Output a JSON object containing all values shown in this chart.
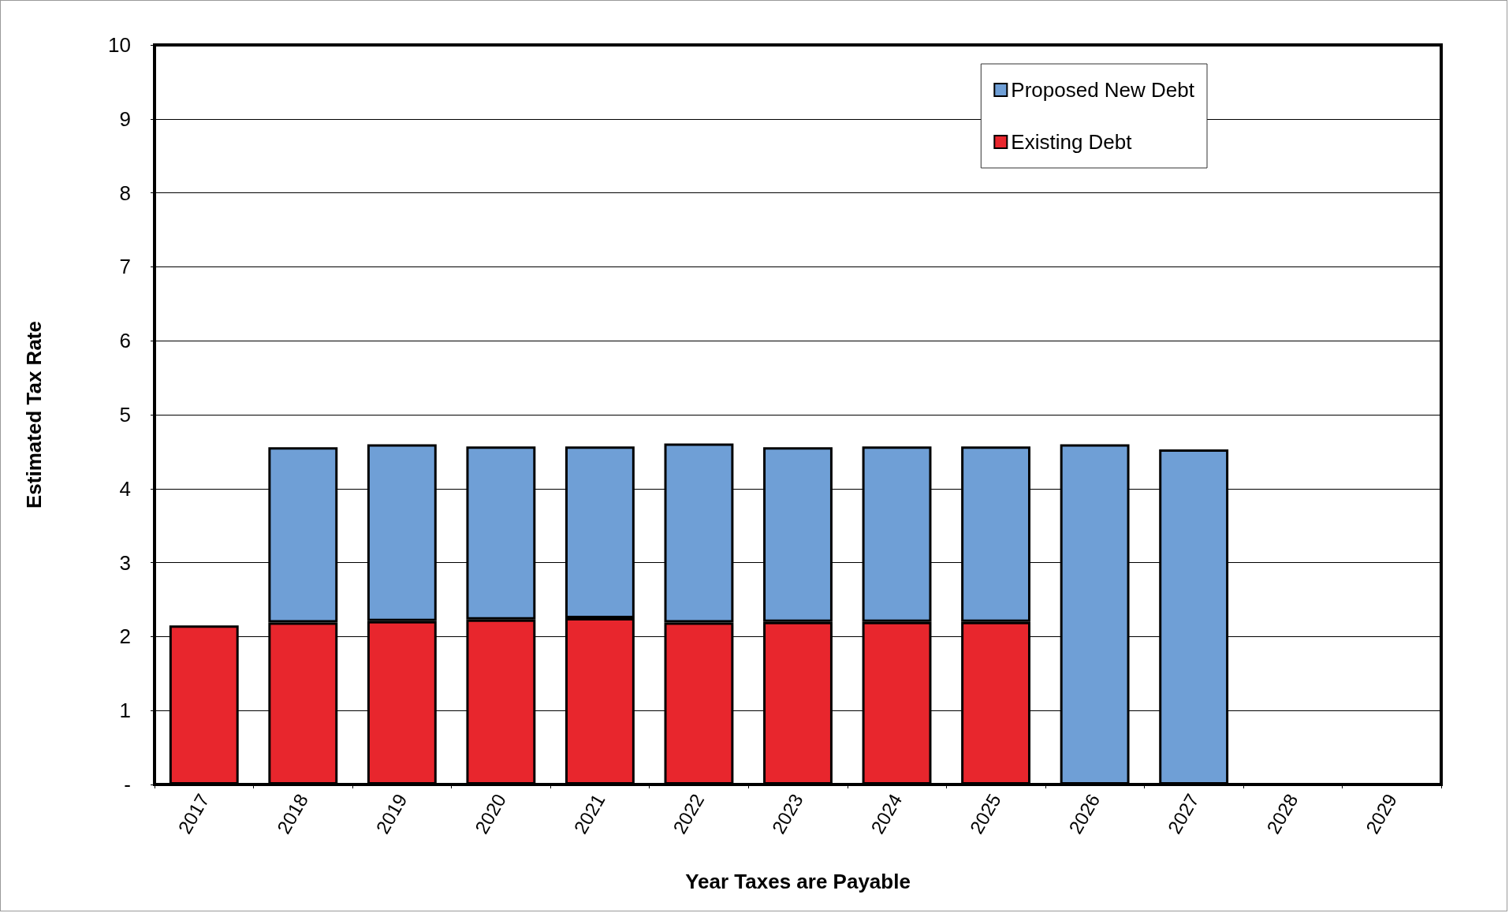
{
  "chart_data": {
    "type": "bar",
    "stacked": true,
    "xlabel": "Year Taxes are Payable",
    "ylabel": "Estimated Tax Rate",
    "categories": [
      "2017",
      "2018",
      "2019",
      "2020",
      "2021",
      "2022",
      "2023",
      "2024",
      "2025",
      "2026",
      "2027",
      "2028",
      "2029"
    ],
    "series": [
      {
        "name": "Existing Debt",
        "color": "#e8262d",
        "values": [
          2.15,
          2.19,
          2.21,
          2.23,
          2.25,
          2.19,
          2.2,
          2.2,
          2.2,
          null,
          null,
          null,
          null
        ]
      },
      {
        "name": "Proposed New Debt",
        "color": "#6f9fd6",
        "values": [
          null,
          2.37,
          2.39,
          2.34,
          2.32,
          2.42,
          2.36,
          2.37,
          2.37,
          4.6,
          4.53,
          null,
          null
        ]
      }
    ],
    "ylim": [
      0,
      10
    ],
    "yticks": [
      {
        "value": 0,
        "label": "-"
      },
      1,
      2,
      3,
      4,
      5,
      6,
      7,
      8,
      9,
      10
    ],
    "grid": "y",
    "legend": "top right"
  }
}
